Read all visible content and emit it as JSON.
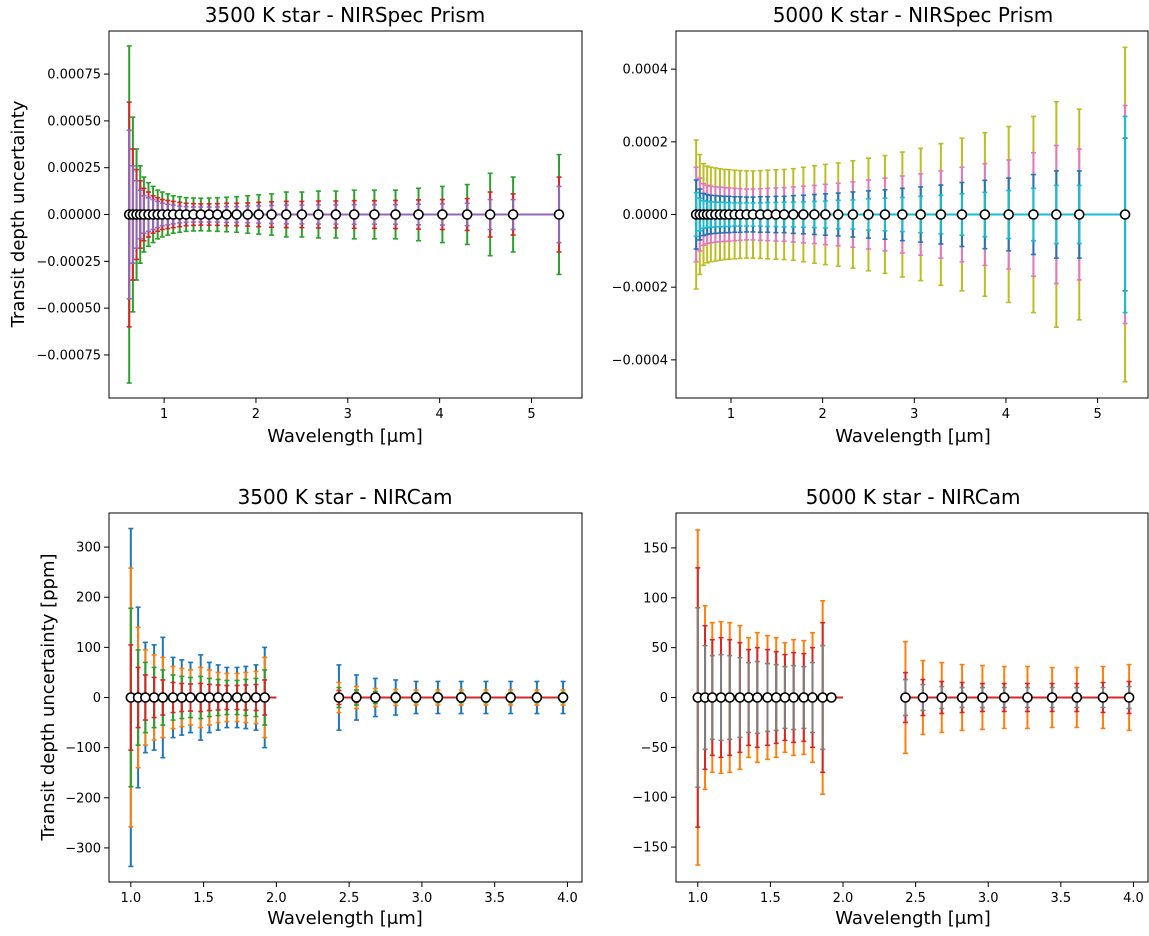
{
  "figure": {
    "panels": [
      {
        "title": "3500 K star - NIRSpec Prism",
        "xlabel": "Wavelength [μm]",
        "ylabel": "Transit depth uncertainty"
      },
      {
        "title": "5000 K star - NIRSpec Prism",
        "xlabel": "Wavelength [μm]",
        "ylabel": ""
      },
      {
        "title": "3500 K star - NIRCam",
        "xlabel": "Wavelength [μm]",
        "ylabel": "Transit depth uncertainty [ppm]"
      },
      {
        "title": "5000 K star - NIRCam",
        "xlabel": "Wavelength [μm]",
        "ylabel": ""
      }
    ]
  },
  "chart_data": [
    {
      "type": "scatter",
      "title": "3500 K star - NIRSpec Prism",
      "xlabel": "Wavelength [μm]",
      "ylabel": "Transit depth uncertainty",
      "xlim": [
        0.4,
        5.55
      ],
      "ylim": [
        -0.00098,
        0.00098
      ],
      "xticks": [
        1,
        2,
        3,
        4,
        5
      ],
      "xtick_labels": [
        "1",
        "2",
        "3",
        "4",
        "5"
      ],
      "yticks": [
        -0.00075,
        -0.0005,
        -0.00025,
        0,
        0.00025,
        0.0005,
        0.00075
      ],
      "ytick_labels": [
        "−0.00075",
        "−0.00050",
        "−0.00025",
        "0.00000",
        "0.00025",
        "0.00050",
        "0.00075"
      ],
      "line_color": "#9467bd",
      "x": [
        0.62,
        0.66,
        0.7,
        0.74,
        0.78,
        0.83,
        0.88,
        0.93,
        0.98,
        1.04,
        1.1,
        1.17,
        1.24,
        1.32,
        1.4,
        1.49,
        1.58,
        1.68,
        1.79,
        1.91,
        2.03,
        2.17,
        2.33,
        2.5,
        2.68,
        2.87,
        3.07,
        3.29,
        3.52,
        3.77,
        4.03,
        4.3,
        4.55,
        4.8,
        5.3
      ],
      "y": [
        0,
        0,
        0,
        0,
        0,
        0,
        0,
        0,
        0,
        0,
        0,
        0,
        0,
        0,
        0,
        0,
        0,
        0,
        0,
        0,
        0,
        0,
        0,
        0,
        0,
        0,
        0,
        0,
        0,
        0,
        0,
        0,
        0,
        0,
        0
      ],
      "series": [
        {
          "color": "#2ca02c",
          "yerr": [
            0.0009,
            0.00052,
            0.00035,
            0.00026,
            0.0002,
            0.00017,
            0.00015,
            0.00013,
            0.00012,
            0.00011,
            0.0001,
            9.5e-05,
            9e-05,
            8.8e-05,
            8.7e-05,
            8.8e-05,
            9e-05,
            9.2e-05,
            9.5e-05,
            0.0001,
            0.000105,
            0.00011,
            0.00012,
            0.00012,
            0.000125,
            0.000125,
            0.00013,
            0.00013,
            0.00013,
            0.00014,
            0.00015,
            0.00016,
            0.00022,
            0.0002,
            0.00032
          ]
        },
        {
          "color": "#d62728",
          "yerr": [
            0.0006,
            0.00035,
            0.00024,
            0.00018,
            0.00014,
            0.00012,
            0.0001,
            9e-05,
            8e-05,
            7.5e-05,
            7e-05,
            6.5e-05,
            6e-05,
            5.8e-05,
            5.7e-05,
            5.7e-05,
            5.8e-05,
            6e-05,
            6e-05,
            6.2e-05,
            6.5e-05,
            6.8e-05,
            7e-05,
            7e-05,
            7.2e-05,
            7.2e-05,
            7.4e-05,
            7.4e-05,
            7.5e-05,
            7.8e-05,
            8e-05,
            8.5e-05,
            0.00012,
            0.00011,
            0.0002
          ]
        },
        {
          "color": "#9467bd",
          "yerr": [
            0.00045,
            0.00026,
            0.00018,
            0.00013,
            0.0001,
            9e-05,
            8e-05,
            7e-05,
            6e-05,
            5.5e-05,
            5e-05,
            4.5e-05,
            4.2e-05,
            4e-05,
            4e-05,
            4e-05,
            4e-05,
            4.2e-05,
            4.2e-05,
            4.4e-05,
            4.6e-05,
            4.8e-05,
            5e-05,
            5e-05,
            5.1e-05,
            5.1e-05,
            5.2e-05,
            5.2e-05,
            5.2e-05,
            5.5e-05,
            5.6e-05,
            6e-05,
            8e-05,
            8e-05,
            0.00015
          ]
        }
      ]
    },
    {
      "type": "scatter",
      "title": "5000 K star - NIRSpec Prism",
      "xlabel": "Wavelength [μm]",
      "ylabel": "",
      "xlim": [
        0.4,
        5.55
      ],
      "ylim": [
        -0.000505,
        0.000505
      ],
      "xticks": [
        1,
        2,
        3,
        4,
        5
      ],
      "xtick_labels": [
        "1",
        "2",
        "3",
        "4",
        "5"
      ],
      "yticks": [
        -0.0004,
        -0.0002,
        0,
        0.0002,
        0.0004
      ],
      "ytick_labels": [
        "−0.0004",
        "−0.0002",
        "0.0000",
        "0.0002",
        "0.0004"
      ],
      "line_color": "#17becf",
      "x": [
        0.62,
        0.66,
        0.7,
        0.74,
        0.78,
        0.83,
        0.88,
        0.93,
        0.98,
        1.04,
        1.1,
        1.17,
        1.24,
        1.32,
        1.4,
        1.49,
        1.58,
        1.68,
        1.79,
        1.91,
        2.03,
        2.17,
        2.33,
        2.5,
        2.68,
        2.87,
        3.07,
        3.29,
        3.52,
        3.77,
        4.03,
        4.3,
        4.55,
        4.8,
        5.3
      ],
      "y": [
        0,
        0,
        0,
        0,
        0,
        0,
        0,
        0,
        0,
        0,
        0,
        0,
        0,
        0,
        0,
        0,
        0,
        0,
        0,
        0,
        0,
        0,
        0,
        0,
        0,
        0,
        0,
        0,
        0,
        0,
        0,
        0,
        0,
        0,
        0
      ],
      "series": [
        {
          "color": "#bcbd22",
          "yerr": [
            0.000205,
            0.000165,
            0.00014,
            0.000133,
            0.00013,
            0.000128,
            0.000126,
            0.000124,
            0.000123,
            0.000122,
            0.000121,
            0.00012,
            0.00012,
            0.000121,
            0.000122,
            0.000123,
            0.000124,
            0.000126,
            0.00013,
            0.000134,
            0.000138,
            0.000142,
            0.000148,
            0.000155,
            0.000162,
            0.000172,
            0.000182,
            0.000195,
            0.00021,
            0.000225,
            0.000242,
            0.00027,
            0.00031,
            0.00029,
            0.00046
          ]
        },
        {
          "color": "#e377c2",
          "yerr": [
            0.00013,
            0.0001,
            8.5e-05,
            8e-05,
            7.8e-05,
            7.6e-05,
            7.5e-05,
            7.4e-05,
            7.3e-05,
            7.2e-05,
            7.1e-05,
            7e-05,
            7e-05,
            7.1e-05,
            7.2e-05,
            7.3e-05,
            7.4e-05,
            7.6e-05,
            7.8e-05,
            8e-05,
            8.3e-05,
            8.6e-05,
            9e-05,
            9.5e-05,
            0.0001,
            0.000106,
            0.000112,
            0.00012,
            0.00013,
            0.00014,
            0.00015,
            0.00017,
            0.00019,
            0.00018,
            0.0003
          ]
        },
        {
          "color": "#1f77b4",
          "yerr": [
            9.5e-05,
            7e-05,
            5.8e-05,
            5.5e-05,
            5.3e-05,
            5.2e-05,
            5.1e-05,
            5e-05,
            5e-05,
            4.9e-05,
            4.9e-05,
            4.8e-05,
            4.8e-05,
            4.9e-05,
            4.9e-05,
            5e-05,
            5e-05,
            5.2e-05,
            5.3e-05,
            5.5e-05,
            5.7e-05,
            5.9e-05,
            6.2e-05,
            6.5e-05,
            6.8e-05,
            7.2e-05,
            7.6e-05,
            8.1e-05,
            8.8e-05,
            9.4e-05,
            0.0001,
            0.00011,
            0.00012,
            0.00012,
            0.00021
          ]
        },
        {
          "color": "#17becf",
          "yerr": [
            6e-05,
            4.5e-05,
            3.8e-05,
            3.6e-05,
            3.5e-05,
            3.4e-05,
            3.4e-05,
            3.3e-05,
            3.3e-05,
            3.2e-05,
            3.2e-05,
            3.2e-05,
            3.2e-05,
            3.2e-05,
            3.3e-05,
            3.3e-05,
            3.4e-05,
            3.4e-05,
            3.5e-05,
            3.6e-05,
            3.7e-05,
            3.9e-05,
            4e-05,
            4.3e-05,
            4.5e-05,
            4.7e-05,
            5e-05,
            5.3e-05,
            5.7e-05,
            6.1e-05,
            6.6e-05,
            7.2e-05,
            8e-05,
            8e-05,
            0.00027
          ]
        }
      ]
    },
    {
      "type": "scatter",
      "title": "3500 K star - NIRCam",
      "xlabel": "Wavelength [μm]",
      "ylabel": "Transit depth uncertainty [ppm]",
      "xlim": [
        0.85,
        4.1
      ],
      "ylim": [
        -368,
        368
      ],
      "xticks": [
        1.0,
        1.5,
        2.0,
        2.5,
        3.0,
        3.5,
        4.0
      ],
      "xtick_labels": [
        "1.0",
        "1.5",
        "2.0",
        "2.5",
        "3.0",
        "3.5",
        "4.0"
      ],
      "yticks": [
        -300,
        -200,
        -100,
        0,
        100,
        200,
        300
      ],
      "ytick_labels": [
        "−300",
        "−200",
        "−100",
        "0",
        "100",
        "200",
        "300"
      ],
      "line_color": "#d62728",
      "line_segments": [
        [
          1.0,
          2.0
        ],
        [
          2.43,
          3.97
        ]
      ],
      "x": [
        1.0,
        1.05,
        1.1,
        1.16,
        1.22,
        1.29,
        1.35,
        1.41,
        1.48,
        1.54,
        1.6,
        1.66,
        1.73,
        1.79,
        1.86,
        1.92,
        2.43,
        2.55,
        2.68,
        2.82,
        2.96,
        3.11,
        3.27,
        3.44,
        3.61,
        3.79,
        3.97
      ],
      "y": [
        0,
        0,
        0,
        0,
        0,
        0,
        0,
        0,
        0,
        0,
        0,
        0,
        0,
        0,
        0,
        0,
        0,
        0,
        0,
        0,
        0,
        0,
        0,
        0,
        0,
        0,
        0
      ],
      "series": [
        {
          "color": "#1f77b4",
          "yerr": [
            337,
            180,
            110,
            105,
            120,
            80,
            75,
            70,
            85,
            70,
            65,
            60,
            60,
            62,
            65,
            100,
            65,
            45,
            38,
            35,
            32,
            32,
            32,
            32,
            32,
            32,
            32
          ]
        },
        {
          "color": "#ff7f0e",
          "yerr": [
            258,
            140,
            95,
            85,
            80,
            62,
            58,
            55,
            60,
            55,
            50,
            48,
            48,
            50,
            52,
            80,
            30,
            22,
            18,
            16,
            15,
            15,
            15,
            15,
            15,
            15,
            15
          ]
        },
        {
          "color": "#2ca02c",
          "yerr": [
            178,
            95,
            70,
            60,
            55,
            45,
            42,
            40,
            42,
            38,
            36,
            34,
            34,
            36,
            38,
            55,
            20,
            15,
            12,
            10,
            10,
            10,
            10,
            10,
            10,
            10,
            10
          ]
        },
        {
          "color": "#d62728",
          "yerr": [
            105,
            60,
            45,
            40,
            35,
            30,
            28,
            27,
            28,
            26,
            25,
            24,
            24,
            25,
            26,
            35,
            14,
            10,
            8,
            7,
            7,
            7,
            7,
            7,
            7,
            7,
            7
          ]
        }
      ]
    },
    {
      "type": "scatter",
      "title": "5000 K star - NIRCam",
      "xlabel": "Wavelength [μm]",
      "ylabel": "",
      "xlim": [
        0.85,
        4.1
      ],
      "ylim": [
        -185,
        185
      ],
      "xticks": [
        1.0,
        1.5,
        2.0,
        2.5,
        3.0,
        3.5,
        4.0
      ],
      "xtick_labels": [
        "1.0",
        "1.5",
        "2.0",
        "2.5",
        "3.0",
        "3.5",
        "4.0"
      ],
      "yticks": [
        -150,
        -100,
        -50,
        0,
        50,
        100,
        150
      ],
      "ytick_labels": [
        "−150",
        "−100",
        "−50",
        "0",
        "50",
        "100",
        "150"
      ],
      "line_color": "#d62728",
      "line_segments": [
        [
          1.0,
          2.0
        ],
        [
          2.43,
          3.97
        ]
      ],
      "x": [
        1.0,
        1.05,
        1.1,
        1.16,
        1.22,
        1.29,
        1.35,
        1.41,
        1.48,
        1.54,
        1.6,
        1.66,
        1.73,
        1.79,
        1.86,
        1.92,
        2.43,
        2.55,
        2.68,
        2.82,
        2.96,
        3.11,
        3.27,
        3.44,
        3.61,
        3.79,
        3.97
      ],
      "y": [
        0,
        0,
        0,
        0,
        0,
        0,
        0,
        0,
        0,
        0,
        0,
        0,
        0,
        0,
        0,
        0,
        0,
        0,
        0,
        0,
        0,
        0,
        0,
        0,
        0,
        0,
        0
      ],
      "series": [
        {
          "color": "#ff7f0e",
          "yerr": [
            168,
            92,
            75,
            76,
            75,
            72,
            60,
            65,
            62,
            60,
            55,
            58,
            57,
            65,
            97,
            0,
            56,
            37,
            35,
            33,
            32,
            31,
            31,
            30,
            30,
            31,
            33
          ]
        },
        {
          "color": "#d62728",
          "yerr": [
            130,
            72,
            58,
            60,
            58,
            55,
            48,
            50,
            48,
            46,
            43,
            45,
            44,
            50,
            75,
            0,
            25,
            18,
            16,
            15,
            14,
            14,
            14,
            14,
            14,
            15,
            16
          ]
        },
        {
          "color": "#7f7f7f",
          "yerr": [
            90,
            52,
            42,
            43,
            42,
            40,
            35,
            36,
            34,
            33,
            31,
            32,
            31,
            35,
            52,
            0,
            18,
            13,
            11,
            10,
            10,
            10,
            10,
            10,
            10,
            10,
            11
          ]
        }
      ]
    }
  ]
}
